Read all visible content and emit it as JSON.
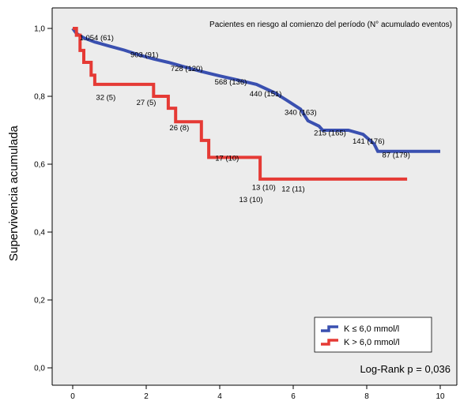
{
  "chart_data": {
    "type": "line",
    "ylabel": "Supervivencia acumulada",
    "xlabel": "",
    "xlim": [
      0,
      10
    ],
    "ylim": [
      0,
      1
    ],
    "xticks": [
      0,
      2,
      4,
      6,
      8,
      10
    ],
    "yticks": [
      0,
      0.2,
      0.4,
      0.6,
      0.8,
      1.0
    ],
    "xtick_labels": [
      "0",
      "2",
      "4",
      "6",
      "8",
      "10"
    ],
    "ytick_labels": [
      "0,0",
      "0,2",
      "0,4",
      "0,6",
      "0,8",
      "1,0"
    ],
    "grid": false,
    "legend_position": "bottom-right",
    "note": "Pacientes en riesgo al comienzo del período (N° acumulado eventos)",
    "logrank": "Log-Rank p = 0,036",
    "series": [
      {
        "name": "K ≤ 6,0 mmol/l",
        "color": "#3a50b0",
        "points": [
          [
            0,
            1.0
          ],
          [
            0.1,
            0.985
          ],
          [
            0.3,
            0.972
          ],
          [
            0.6,
            0.96
          ],
          [
            1.0,
            0.948
          ],
          [
            1.4,
            0.936
          ],
          [
            1.8,
            0.922
          ],
          [
            2.2,
            0.91
          ],
          [
            2.6,
            0.9
          ],
          [
            3.0,
            0.888
          ],
          [
            3.5,
            0.873
          ],
          [
            4.0,
            0.86
          ],
          [
            4.5,
            0.848
          ],
          [
            5.0,
            0.835
          ],
          [
            5.5,
            0.81
          ],
          [
            5.8,
            0.79
          ],
          [
            6.2,
            0.762
          ],
          [
            6.4,
            0.728
          ],
          [
            6.7,
            0.712
          ],
          [
            6.8,
            0.7
          ],
          [
            7.5,
            0.7
          ],
          [
            7.9,
            0.688
          ],
          [
            8.2,
            0.66
          ],
          [
            8.3,
            0.638
          ],
          [
            10.0,
            0.638
          ]
        ],
        "annotations": [
          {
            "x": 0.65,
            "y": 0.965,
            "label": "1.054 (61)"
          },
          {
            "x": 1.95,
            "y": 0.915,
            "label": "903 (91)"
          },
          {
            "x": 3.1,
            "y": 0.875,
            "label": "728 (120)"
          },
          {
            "x": 4.3,
            "y": 0.835,
            "label": "568 (136)"
          },
          {
            "x": 5.25,
            "y": 0.8,
            "label": "440 (151)"
          },
          {
            "x": 6.2,
            "y": 0.745,
            "label": "340 (163)"
          },
          {
            "x": 7.0,
            "y": 0.685,
            "label": "215 (165)"
          },
          {
            "x": 8.05,
            "y": 0.66,
            "label": "141 (176)"
          },
          {
            "x": 8.8,
            "y": 0.62,
            "label": "87 (179)"
          }
        ]
      },
      {
        "name": "K > 6,0 mmol/l",
        "color": "#e53a35",
        "points": [
          [
            0,
            1.0
          ],
          [
            0.1,
            1.0
          ],
          [
            0.1,
            0.98
          ],
          [
            0.2,
            0.98
          ],
          [
            0.2,
            0.935
          ],
          [
            0.3,
            0.935
          ],
          [
            0.3,
            0.9
          ],
          [
            0.5,
            0.9
          ],
          [
            0.5,
            0.862
          ],
          [
            0.6,
            0.862
          ],
          [
            0.6,
            0.835
          ],
          [
            2.2,
            0.835
          ],
          [
            2.2,
            0.8
          ],
          [
            2.6,
            0.8
          ],
          [
            2.6,
            0.765
          ],
          [
            2.8,
            0.765
          ],
          [
            2.8,
            0.725
          ],
          [
            3.5,
            0.725
          ],
          [
            3.5,
            0.67
          ],
          [
            3.7,
            0.67
          ],
          [
            3.7,
            0.62
          ],
          [
            5.1,
            0.62
          ],
          [
            5.1,
            0.556
          ],
          [
            9.1,
            0.556
          ]
        ],
        "annotations": [
          {
            "x": 0.9,
            "y": 0.79,
            "label": "32 (5)"
          },
          {
            "x": 2.0,
            "y": 0.775,
            "label": "27 (5)"
          },
          {
            "x": 2.9,
            "y": 0.7,
            "label": "26 (8)"
          },
          {
            "x": 4.2,
            "y": 0.61,
            "label": "17 (10)"
          },
          {
            "x": 5.2,
            "y": 0.525,
            "label": "13 (10)"
          },
          {
            "x": 6.0,
            "y": 0.52,
            "label": "12 (11)"
          },
          {
            "x": 4.85,
            "y": 0.488,
            "label": "13 (10)"
          }
        ]
      }
    ]
  }
}
